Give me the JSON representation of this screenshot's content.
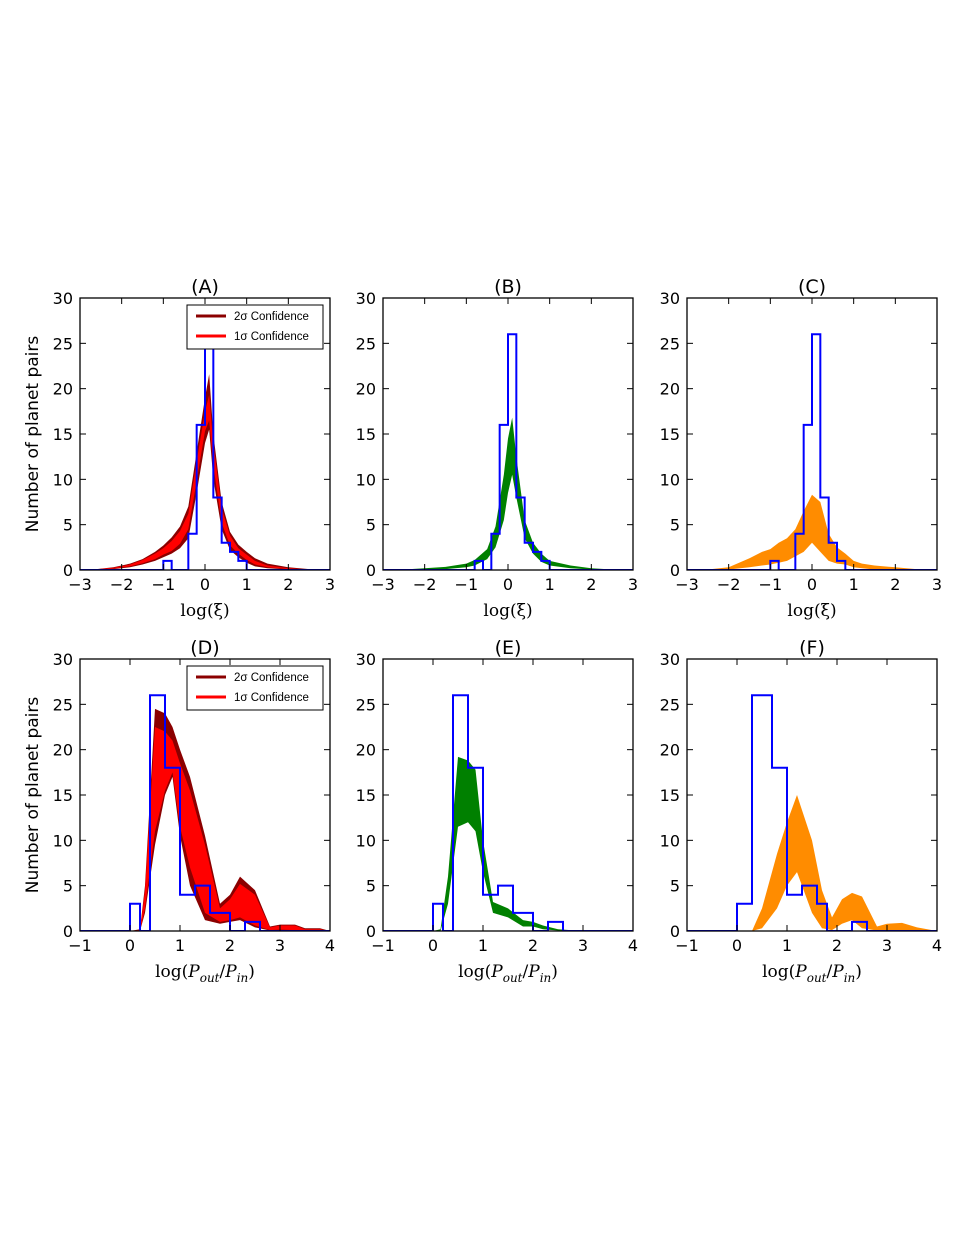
{
  "figure": {
    "ylabel": "Number of planet pairs",
    "legend": {
      "items": [
        {
          "label": "2σ Confidence",
          "color": "#8b0000"
        },
        {
          "label": "1σ Confidence",
          "color": "#ff0000"
        }
      ]
    },
    "colors": {
      "hist": "#0000ff"
    }
  },
  "chart_data": [
    {
      "type": "area",
      "title": "(A)",
      "xlabel": "log(ξ)",
      "xlim": [
        -3,
        3
      ],
      "ylim": [
        0,
        30
      ],
      "xticks": [
        -3,
        -2,
        -1,
        0,
        1,
        2,
        3
      ],
      "xtick_labels": [
        "−3",
        "−2",
        "−1",
        "0",
        "1",
        "2",
        "3"
      ],
      "yticks": [
        0,
        5,
        10,
        15,
        20,
        25,
        30
      ],
      "legend": true,
      "legend_position": "top-right",
      "hist": {
        "edges": [
          -1.2,
          -1.0,
          -0.8,
          -0.6,
          -0.4,
          -0.2,
          0.0,
          0.2,
          0.4,
          0.6,
          0.8,
          1.0,
          1.2
        ],
        "counts": [
          0,
          1,
          0,
          0,
          4,
          16,
          26,
          8,
          3,
          2,
          1,
          0
        ]
      },
      "band_color": "#ff0000",
      "outer_color": "#8b0000",
      "x": [
        -3,
        -2.6,
        -2.2,
        -1.8,
        -1.5,
        -1.2,
        -1.0,
        -0.8,
        -0.6,
        -0.4,
        -0.2,
        0.0,
        0.1,
        0.2,
        0.4,
        0.6,
        0.8,
        1.0,
        1.2,
        1.5,
        2.0,
        2.5,
        3
      ],
      "outer_low": [
        0,
        0,
        0.1,
        0.3,
        0.6,
        1.0,
        1.4,
        1.8,
        2.4,
        3.5,
        8.5,
        14,
        15.5,
        10,
        4.5,
        2.2,
        1.4,
        0.8,
        0.4,
        0.2,
        0.05,
        0,
        0
      ],
      "outer_high": [
        0,
        0.1,
        0.3,
        0.7,
        1.2,
        2.0,
        2.7,
        3.6,
        4.8,
        7.0,
        13,
        19,
        21.6,
        15,
        7.5,
        4.2,
        2.8,
        2.0,
        1.3,
        0.7,
        0.3,
        0.1,
        0
      ],
      "low": [
        0,
        0.02,
        0.15,
        0.4,
        0.75,
        1.2,
        1.7,
        2.1,
        2.9,
        4.5,
        9.8,
        15.3,
        16.5,
        11.5,
        5.2,
        2.7,
        1.8,
        1.1,
        0.6,
        0.3,
        0.1,
        0,
        0
      ],
      "high": [
        0,
        0.08,
        0.25,
        0.6,
        1.1,
        1.8,
        2.4,
        3.2,
        4.3,
        6.2,
        12,
        17.5,
        19.3,
        14,
        6.8,
        3.8,
        2.4,
        1.7,
        1.0,
        0.5,
        0.2,
        0.05,
        0
      ]
    },
    {
      "type": "area",
      "title": "(B)",
      "xlabel": "log(ξ)",
      "xlim": [
        -3,
        3
      ],
      "ylim": [
        0,
        30
      ],
      "xticks": [
        -3,
        -2,
        -1,
        0,
        1,
        2,
        3
      ],
      "xtick_labels": [
        "−3",
        "−2",
        "−1",
        "0",
        "1",
        "2",
        "3"
      ],
      "yticks": [
        0,
        5,
        10,
        15,
        20,
        25,
        30
      ],
      "hist": {
        "edges": [
          -1.2,
          -1.0,
          -0.8,
          -0.6,
          -0.4,
          -0.2,
          0.0,
          0.2,
          0.4,
          0.6,
          0.8,
          1.0,
          1.2
        ],
        "counts": [
          0,
          0,
          1,
          0,
          4,
          16,
          26,
          8,
          3,
          2,
          1,
          0
        ]
      },
      "band_color": "#008000",
      "x": [
        -3,
        -2.5,
        -2.0,
        -1.5,
        -1.0,
        -0.8,
        -0.5,
        -0.3,
        -0.1,
        0.0,
        0.1,
        0.2,
        0.4,
        0.6,
        0.8,
        1.0,
        1.5,
        2.0,
        2.5,
        3
      ],
      "low": [
        0,
        0,
        0.05,
        0.1,
        0.3,
        0.5,
        1.2,
        2.5,
        5.5,
        8.5,
        10.5,
        8,
        3.5,
        1.8,
        0.9,
        0.5,
        0.2,
        0.05,
        0,
        0
      ],
      "high": [
        0,
        0.05,
        0.2,
        0.35,
        0.7,
        1.1,
        2.3,
        4.8,
        10.5,
        14.5,
        16.8,
        12.5,
        5.5,
        3.0,
        1.8,
        1.0,
        0.5,
        0.2,
        0.05,
        0
      ]
    },
    {
      "type": "area",
      "title": "(C)",
      "xlabel": "log(ξ)",
      "xlim": [
        -3,
        3
      ],
      "ylim": [
        0,
        30
      ],
      "xticks": [
        -3,
        -2,
        -1,
        0,
        1,
        2,
        3
      ],
      "xtick_labels": [
        "−3",
        "−2",
        "−1",
        "0",
        "1",
        "2",
        "3"
      ],
      "yticks": [
        0,
        5,
        10,
        15,
        20,
        25,
        30
      ],
      "hist": {
        "edges": [
          -1.2,
          -1.0,
          -0.8,
          -0.6,
          -0.4,
          -0.2,
          0.0,
          0.2,
          0.4,
          0.6,
          0.8,
          1.0,
          1.2
        ],
        "counts": [
          0,
          1,
          0,
          0,
          4,
          16,
          26,
          8,
          3,
          1,
          0,
          0
        ]
      },
      "band_color": "#ff8c00",
      "x": [
        -3,
        -2.5,
        -2.0,
        -1.5,
        -1.2,
        -1.0,
        -0.8,
        -0.6,
        -0.4,
        -0.2,
        0.0,
        0.2,
        0.4,
        0.6,
        0.8,
        1.0,
        1.2,
        1.5,
        2.0,
        2.5,
        3
      ],
      "low": [
        0,
        0,
        0.05,
        0.3,
        0.5,
        0.6,
        0.8,
        1.0,
        1.5,
        2.0,
        3.0,
        2.0,
        1.0,
        0.7,
        0.6,
        0.3,
        0.2,
        0.05,
        0,
        0,
        0
      ],
      "high": [
        0,
        0.05,
        0.3,
        1.3,
        2.0,
        2.3,
        3.0,
        3.5,
        4.5,
        6.5,
        8.3,
        7.5,
        4.0,
        2.5,
        1.8,
        1.0,
        0.7,
        0.5,
        0.3,
        0.1,
        0
      ]
    },
    {
      "type": "area",
      "title": "(D)",
      "xlabel": "log(P_out/P_in)",
      "xlim": [
        -1,
        4
      ],
      "ylim": [
        0,
        30
      ],
      "xticks": [
        -1,
        0,
        1,
        2,
        3,
        4
      ],
      "xtick_labels": [
        "−1",
        "0",
        "1",
        "2",
        "3",
        "4"
      ],
      "yticks": [
        0,
        5,
        10,
        15,
        20,
        25,
        30
      ],
      "legend": true,
      "legend_position": "top-right",
      "hist": {
        "edges": [
          -1.0,
          0.0,
          0.2,
          0.4,
          0.7,
          1.0,
          1.3,
          1.6,
          2.0,
          2.3,
          2.6,
          3.0,
          4.0
        ],
        "counts": [
          0,
          3,
          0,
          26,
          18,
          4,
          5,
          2,
          0,
          1,
          0,
          0
        ]
      },
      "band_color": "#ff0000",
      "outer_color": "#8b0000",
      "x": [
        -1,
        0.0,
        0.2,
        0.3,
        0.5,
        0.7,
        0.85,
        1.0,
        1.2,
        1.5,
        1.8,
        2.0,
        2.2,
        2.5,
        2.8,
        3.0,
        3.3,
        3.5,
        3.8,
        4.0
      ],
      "outer_low": [
        0,
        0,
        0,
        2.0,
        9.5,
        15.0,
        17.0,
        10.5,
        5.0,
        1.2,
        0.8,
        1.0,
        1.2,
        0.4,
        0.05,
        0.1,
        0.05,
        0,
        0,
        0
      ],
      "outer_high": [
        0,
        0,
        0.2,
        5.0,
        24.5,
        24.0,
        22.5,
        20.0,
        17.0,
        10.5,
        3.0,
        4.0,
        6.0,
        4.5,
        0.5,
        0.7,
        0.7,
        0.3,
        0.3,
        0
      ],
      "low": [
        0,
        0,
        0,
        2.5,
        11.0,
        15.5,
        17.5,
        11.5,
        7.0,
        2.0,
        1.0,
        1.2,
        1.5,
        0.6,
        0.1,
        0.15,
        0.1,
        0.05,
        0,
        0
      ],
      "high": [
        0,
        0,
        0.1,
        4.5,
        22.5,
        22.0,
        21.0,
        18.5,
        15.5,
        9.5,
        2.5,
        3.5,
        5.2,
        4.0,
        0.4,
        0.6,
        0.6,
        0.2,
        0.2,
        0
      ]
    },
    {
      "type": "area",
      "title": "(E)",
      "xlabel": "log(P_out/P_in)",
      "xlim": [
        -1,
        4
      ],
      "ylim": [
        0,
        30
      ],
      "xticks": [
        -1,
        0,
        1,
        2,
        3,
        4
      ],
      "xtick_labels": [
        "−1",
        "0",
        "1",
        "2",
        "3",
        "4"
      ],
      "yticks": [
        0,
        5,
        10,
        15,
        20,
        25,
        30
      ],
      "hist": {
        "edges": [
          -1.0,
          0.0,
          0.2,
          0.4,
          0.7,
          1.0,
          1.3,
          1.6,
          2.0,
          2.3,
          2.6,
          3.0,
          4.0
        ],
        "counts": [
          0,
          3,
          0,
          26,
          18,
          4,
          5,
          2,
          0,
          1,
          0,
          0
        ]
      },
      "band_color": "#008000",
      "x": [
        -1,
        0.0,
        0.15,
        0.3,
        0.5,
        0.7,
        0.85,
        1.0,
        1.2,
        1.5,
        1.8,
        2.0,
        2.2,
        2.5,
        3.0,
        4.0
      ],
      "low": [
        0,
        0,
        0,
        3.0,
        11.5,
        12.0,
        11.0,
        6.5,
        2.0,
        1.5,
        0.5,
        0.5,
        0.2,
        0.05,
        0,
        0
      ],
      "high": [
        0,
        0,
        0.2,
        6.0,
        19.2,
        18.8,
        17.8,
        10.0,
        3.2,
        2.5,
        1.2,
        1.0,
        0.6,
        0.2,
        0,
        0
      ]
    },
    {
      "type": "area",
      "title": "(F)",
      "xlabel": "log(P_out/P_in)",
      "xlim": [
        -1,
        4
      ],
      "ylim": [
        0,
        30
      ],
      "xticks": [
        -1,
        0,
        1,
        2,
        3,
        4
      ],
      "xtick_labels": [
        "−1",
        "0",
        "1",
        "2",
        "3",
        "4"
      ],
      "yticks": [
        0,
        5,
        10,
        15,
        20,
        25,
        30
      ],
      "hist": {
        "edges": [
          -1.0,
          0.0,
          0.3,
          0.7,
          1.0,
          1.3,
          1.6,
          1.8,
          2.3,
          2.6,
          3.0,
          4.0
        ],
        "counts": [
          0,
          3,
          26,
          18,
          4,
          5,
          3,
          0,
          1,
          0,
          0
        ]
      },
      "band_color": "#ff8c00",
      "x": [
        -1,
        0.3,
        0.5,
        0.8,
        1.0,
        1.2,
        1.5,
        1.7,
        1.9,
        2.1,
        2.3,
        2.5,
        2.8,
        3.0,
        3.3,
        3.6,
        4.0
      ],
      "low": [
        0,
        0,
        0.3,
        2.5,
        5.0,
        6.5,
        2.0,
        0.3,
        0.1,
        0.8,
        1.2,
        0.3,
        0.05,
        0.05,
        0.05,
        0,
        0
      ],
      "high": [
        0,
        0,
        2.5,
        8.5,
        12.0,
        15.0,
        10.0,
        4.5,
        1.5,
        3.5,
        4.2,
        3.8,
        0.5,
        0.8,
        0.9,
        0.4,
        0
      ]
    }
  ]
}
